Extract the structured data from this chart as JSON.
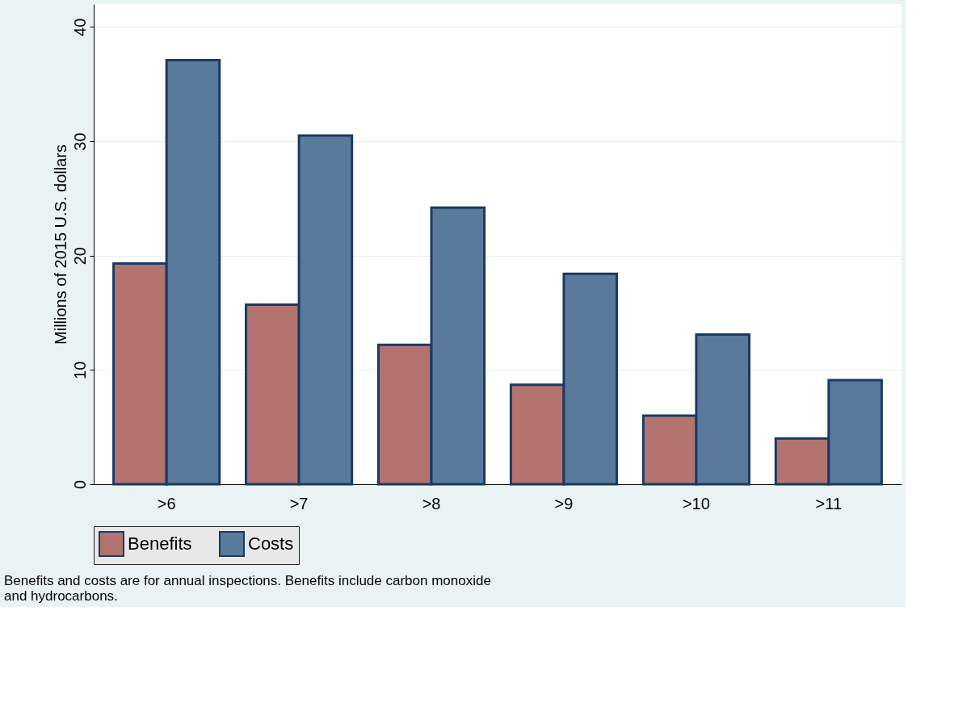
{
  "chart_data": {
    "type": "bar",
    "ylabel": "Millions of 2015 U.S. dollars",
    "categories": [
      ">6",
      ">7",
      ">8",
      ">9",
      ">10",
      ">11"
    ],
    "series": [
      {
        "name": "Benefits",
        "color": "#b37470",
        "values": [
          19.3,
          15.7,
          12.2,
          8.7,
          6.0,
          4.0
        ]
      },
      {
        "name": "Costs",
        "color": "#5a7a9c",
        "values": [
          37.1,
          30.5,
          24.2,
          18.4,
          13.1,
          9.1
        ]
      }
    ],
    "ylim": [
      0,
      42
    ],
    "yticks": [
      0,
      10,
      20,
      30,
      40
    ],
    "grid": "y",
    "legend": "bottom",
    "annotations": [
      "Benefits and costs are for annual inspections. Benefits include carbon monoxide and hydrocarbons."
    ]
  }
}
